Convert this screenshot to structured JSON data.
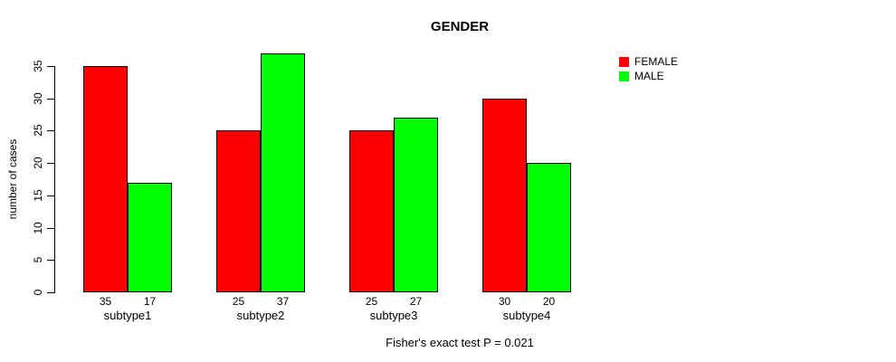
{
  "chart_data": {
    "type": "bar",
    "title": "GENDER",
    "ylabel": "number of cases",
    "xlabel": "",
    "categories": [
      "subtype1",
      "subtype2",
      "subtype3",
      "subtype4"
    ],
    "series": [
      {
        "name": "FEMALE",
        "color": "#FF0000",
        "values": [
          35,
          25,
          25,
          30
        ]
      },
      {
        "name": "MALE",
        "color": "#00FF00",
        "values": [
          17,
          37,
          27,
          20
        ]
      }
    ],
    "ylim": [
      0,
      35
    ],
    "yticks": [
      0,
      5,
      10,
      15,
      20,
      25,
      30,
      35
    ],
    "bar_value_labels": [
      [
        35,
        25,
        25,
        30
      ],
      [
        17,
        37,
        27,
        20
      ]
    ],
    "legend_position": "top-right",
    "grid": false,
    "footnote": "Fisher's exact test P = 0.021"
  }
}
